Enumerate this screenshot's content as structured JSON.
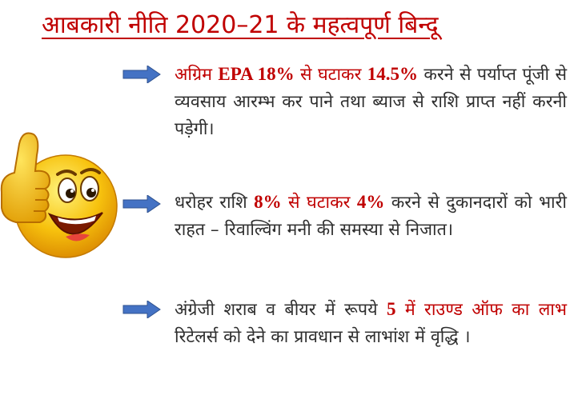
{
  "title": "आबकारी नीति 2020–21 के महत्वपूर्ण बिन्दू",
  "points": [
    {
      "parts": [
        {
          "text": "अग्रिम ",
          "style": "red"
        },
        {
          "text": "EPA  18%",
          "style": "red bold"
        },
        {
          "text": " से घटाकर ",
          "style": "red"
        },
        {
          "text": "14.5%",
          "style": "red bold"
        },
        {
          "text": " करने से पर्याप्त पूंजी से व्यवसाय आरम्भ कर पाने तथा ब्याज से राशि प्राप्त नहीं करनी पड़ेगी।",
          "style": "plain"
        }
      ]
    },
    {
      "parts": [
        {
          "text": "धरोहर राशि ",
          "style": "plain"
        },
        {
          "text": "8%",
          "style": "red bold"
        },
        {
          "text": " से घटाकर ",
          "style": "red"
        },
        {
          "text": "4%",
          "style": "red bold"
        },
        {
          "text": " करने से दुकानदारों को भारी राहत – रिवाल्विंग मनी की समस्या से निजात।",
          "style": "plain"
        }
      ]
    },
    {
      "parts": [
        {
          "text": "अंग्रेजी शराब व बीयर में रूपये ",
          "style": "plain"
        },
        {
          "text": "5",
          "style": "red bold"
        },
        {
          "text": " में राउण्ड ऑफ का लाभ",
          "style": "red"
        },
        {
          "text": " रिटेलर्स को देने का प्रावधान से लाभांश में वृद्धि ।",
          "style": "plain"
        }
      ]
    }
  ],
  "colors": {
    "title": "#c00000",
    "highlight": "#c00000",
    "text": "#2e2e2e",
    "arrow": "#4472c4"
  },
  "icons": {
    "emoji": "thumbs-up-smiley-icon",
    "bullet": "right-arrow-icon"
  }
}
